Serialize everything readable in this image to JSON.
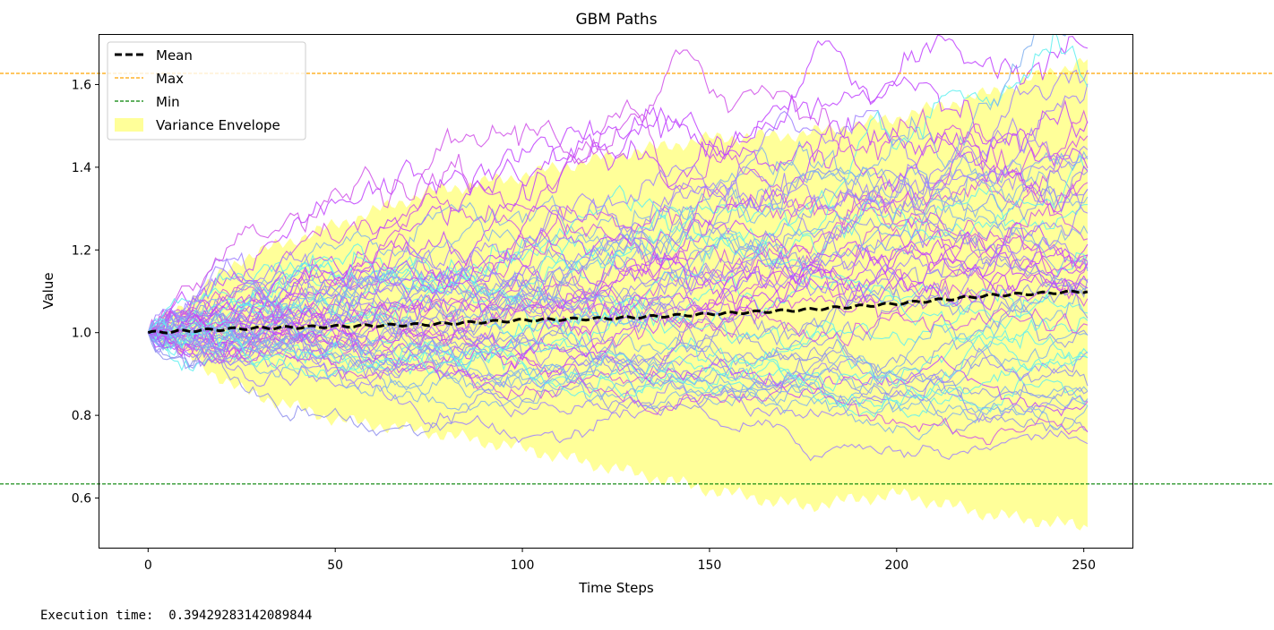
{
  "chart_data": {
    "type": "line",
    "title": "GBM Paths",
    "xlabel": "Time Steps",
    "ylabel": "Value",
    "xlim": [
      -13,
      263
    ],
    "ylim": [
      0.48,
      1.72
    ],
    "xticks": [
      0,
      50,
      100,
      150,
      200,
      250
    ],
    "xtick_labels": [
      "0",
      "50",
      "100",
      "150",
      "200",
      "250"
    ],
    "yticks": [
      0.6,
      0.8,
      1.0,
      1.2,
      1.4,
      1.6
    ],
    "ytick_labels": [
      "0.6",
      "0.8",
      "1.0",
      "1.2",
      "1.4",
      "1.6"
    ],
    "grid": false,
    "legend_position": "upper left",
    "legend": [
      "Mean",
      "Max",
      "Min",
      "Variance Envelope"
    ],
    "num_steps": 252,
    "num_paths": 60,
    "mean_series": {
      "name": "Mean",
      "color": "#000000",
      "x": [
        0,
        25,
        50,
        75,
        100,
        125,
        150,
        175,
        200,
        225,
        251
      ],
      "y": [
        1.0,
        1.01,
        1.015,
        1.02,
        1.03,
        1.035,
        1.045,
        1.055,
        1.07,
        1.09,
        1.1
      ]
    },
    "max_line": {
      "name": "Max",
      "value": 1.627,
      "color": "#ffa500"
    },
    "min_line": {
      "name": "Min",
      "value": 0.634,
      "color": "#008000"
    },
    "envelope": {
      "name": "Variance Envelope",
      "color": "#ffff80",
      "x": [
        0,
        25,
        50,
        75,
        100,
        125,
        150,
        175,
        200,
        225,
        251
      ],
      "upper": [
        1.0,
        1.18,
        1.26,
        1.34,
        1.38,
        1.43,
        1.47,
        1.48,
        1.52,
        1.58,
        1.66
      ],
      "lower": [
        1.0,
        0.86,
        0.79,
        0.76,
        0.72,
        0.67,
        0.62,
        0.58,
        0.61,
        0.56,
        0.53
      ]
    },
    "path_colors": [
      "#bf3fff",
      "#8f8fef",
      "#5ff0f0",
      "#d050e8",
      "#9f7fff",
      "#7fb0f0"
    ]
  },
  "output": {
    "exec_label": "Execution time: ",
    "exec_value": "0.39429283142089844"
  }
}
